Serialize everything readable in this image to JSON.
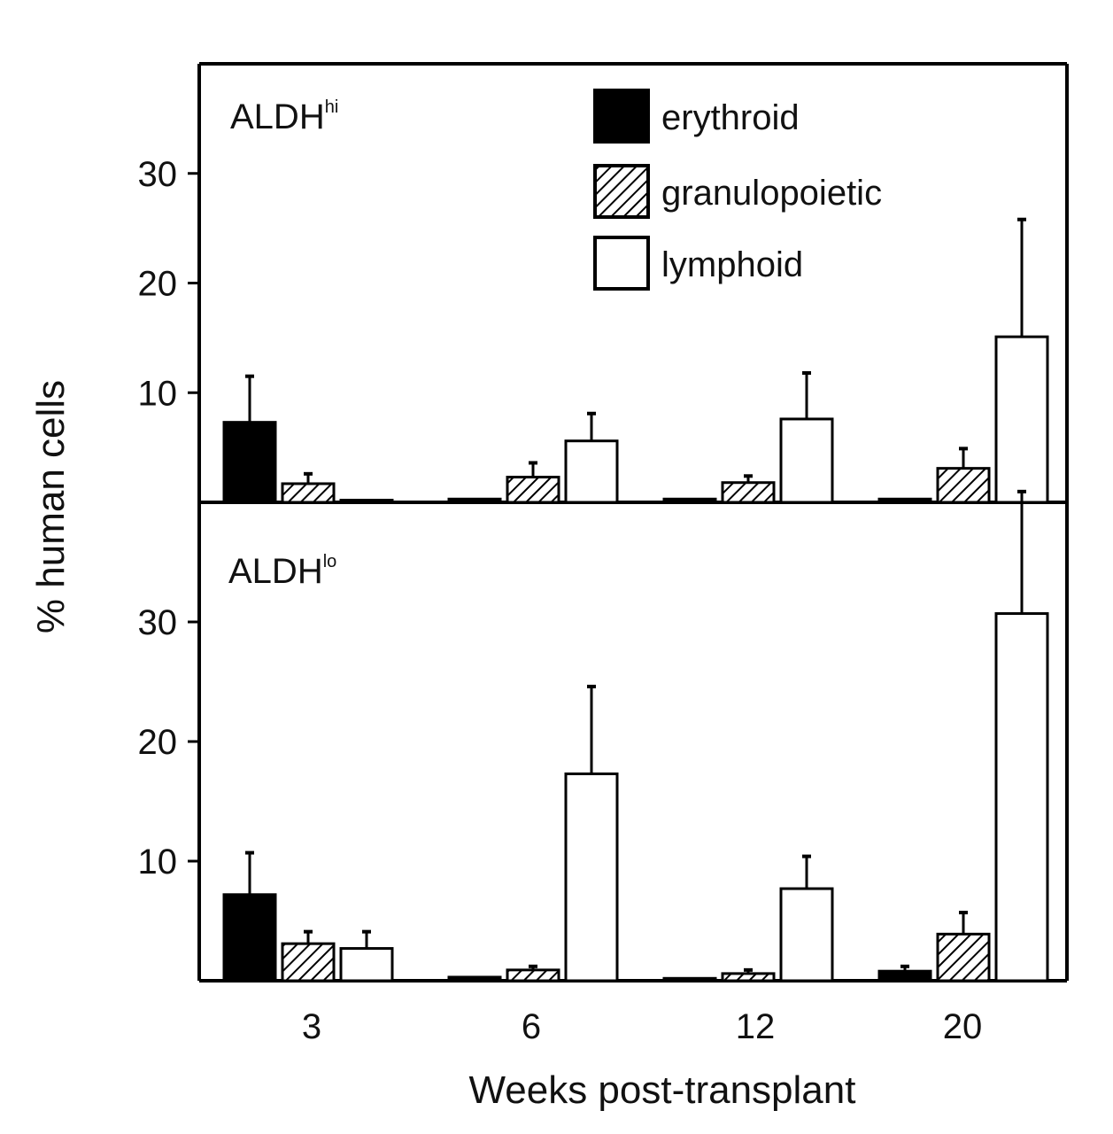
{
  "chart_data": {
    "type": "bar",
    "xlabel": "Weeks post-transplant",
    "ylabel": "% human cells",
    "categories": [
      "3",
      "6",
      "12",
      "20"
    ],
    "legend": {
      "position": "top-right",
      "entries": [
        {
          "key": "erythroid",
          "label": "erythroid"
        },
        {
          "key": "granulopoietic",
          "label": "granulopoietic"
        },
        {
          "key": "lymphoid",
          "label": "lymphoid"
        }
      ]
    },
    "styles": {
      "erythroid": {
        "fill": "#000000",
        "pattern": "solid"
      },
      "granulopoietic": {
        "fill": "#ffffff",
        "pattern": "hatch"
      },
      "lymphoid": {
        "fill": "#ffffff",
        "pattern": "none"
      }
    },
    "panels": [
      {
        "key": "hi",
        "label_main": "ALDH",
        "label_sup": "hi",
        "ylim": [
          0,
          40
        ],
        "yticks": [
          10,
          20,
          30
        ],
        "series": [
          {
            "name": "erythroid",
            "values": [
              7.3,
              0.3,
              0.3,
              0.3
            ],
            "errors": [
              4.2,
              0.1,
              0.1,
              0.1
            ]
          },
          {
            "name": "granulopoietic",
            "values": [
              1.7,
              2.3,
              1.8,
              3.1
            ],
            "errors": [
              0.9,
              1.3,
              0.6,
              1.8
            ]
          },
          {
            "name": "lymphoid",
            "values": [
              0.2,
              5.6,
              7.6,
              15.1
            ],
            "errors": [
              0.1,
              2.5,
              4.2,
              10.7
            ]
          }
        ]
      },
      {
        "key": "lo",
        "label_main": "ALDH",
        "label_sup": "lo",
        "ylim": [
          0,
          40
        ],
        "yticks": [
          10,
          20,
          30
        ],
        "series": [
          {
            "name": "erythroid",
            "values": [
              7.2,
              0.3,
              0.2,
              0.8
            ],
            "errors": [
              3.5,
              0.1,
              0.1,
              0.4
            ]
          },
          {
            "name": "granulopoietic",
            "values": [
              3.1,
              0.9,
              0.6,
              3.9
            ],
            "errors": [
              1.0,
              0.3,
              0.3,
              1.8
            ]
          },
          {
            "name": "lymphoid",
            "values": [
              2.7,
              17.3,
              7.7,
              30.7
            ],
            "errors": [
              1.4,
              7.3,
              2.7,
              10.2
            ]
          }
        ]
      }
    ]
  }
}
